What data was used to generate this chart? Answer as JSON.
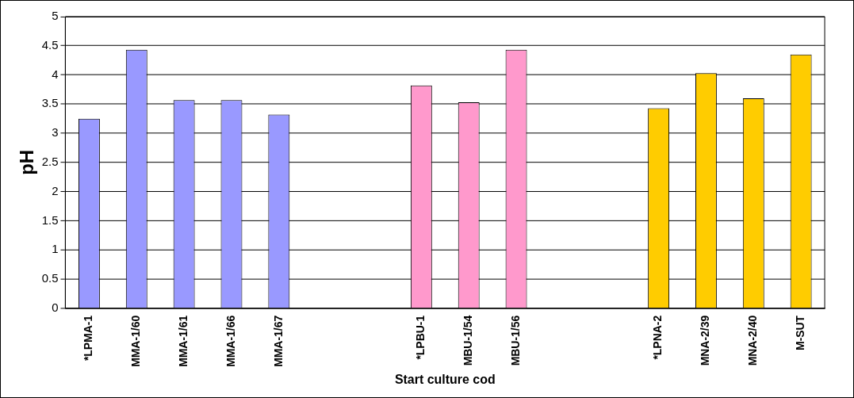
{
  "chart_data": {
    "type": "bar",
    "xlabel": "Start culture cod",
    "ylabel": "pH",
    "categories": [
      "*LPMA-1",
      "MMA-1/60",
      "MMA-1/61",
      "MMA-1/66",
      "MMA-1/67",
      null,
      null,
      "*LPBU-1",
      "MBU-1/54",
      "MBU-1/56",
      null,
      null,
      "*LPNA-2",
      "MNA-2/39",
      "MNA-2/40",
      "M-SUT"
    ],
    "values": [
      3.25,
      4.43,
      3.57,
      3.57,
      3.32,
      null,
      null,
      3.82,
      3.53,
      4.43,
      null,
      null,
      3.43,
      4.03,
      3.6,
      4.35
    ],
    "colors": [
      "#9999ff",
      "#9999ff",
      "#9999ff",
      "#9999ff",
      "#9999ff",
      null,
      null,
      "#ff99cc",
      "#ff99cc",
      "#ff99cc",
      null,
      null,
      "#ffcc00",
      "#ffcc00",
      "#ffcc00",
      "#ffcc00"
    ],
    "ylim": [
      0,
      5
    ],
    "yticks": [
      0,
      0.5,
      1,
      1.5,
      2,
      2.5,
      3,
      3.5,
      4,
      4.5,
      5
    ],
    "grid": "y",
    "legend": false
  }
}
